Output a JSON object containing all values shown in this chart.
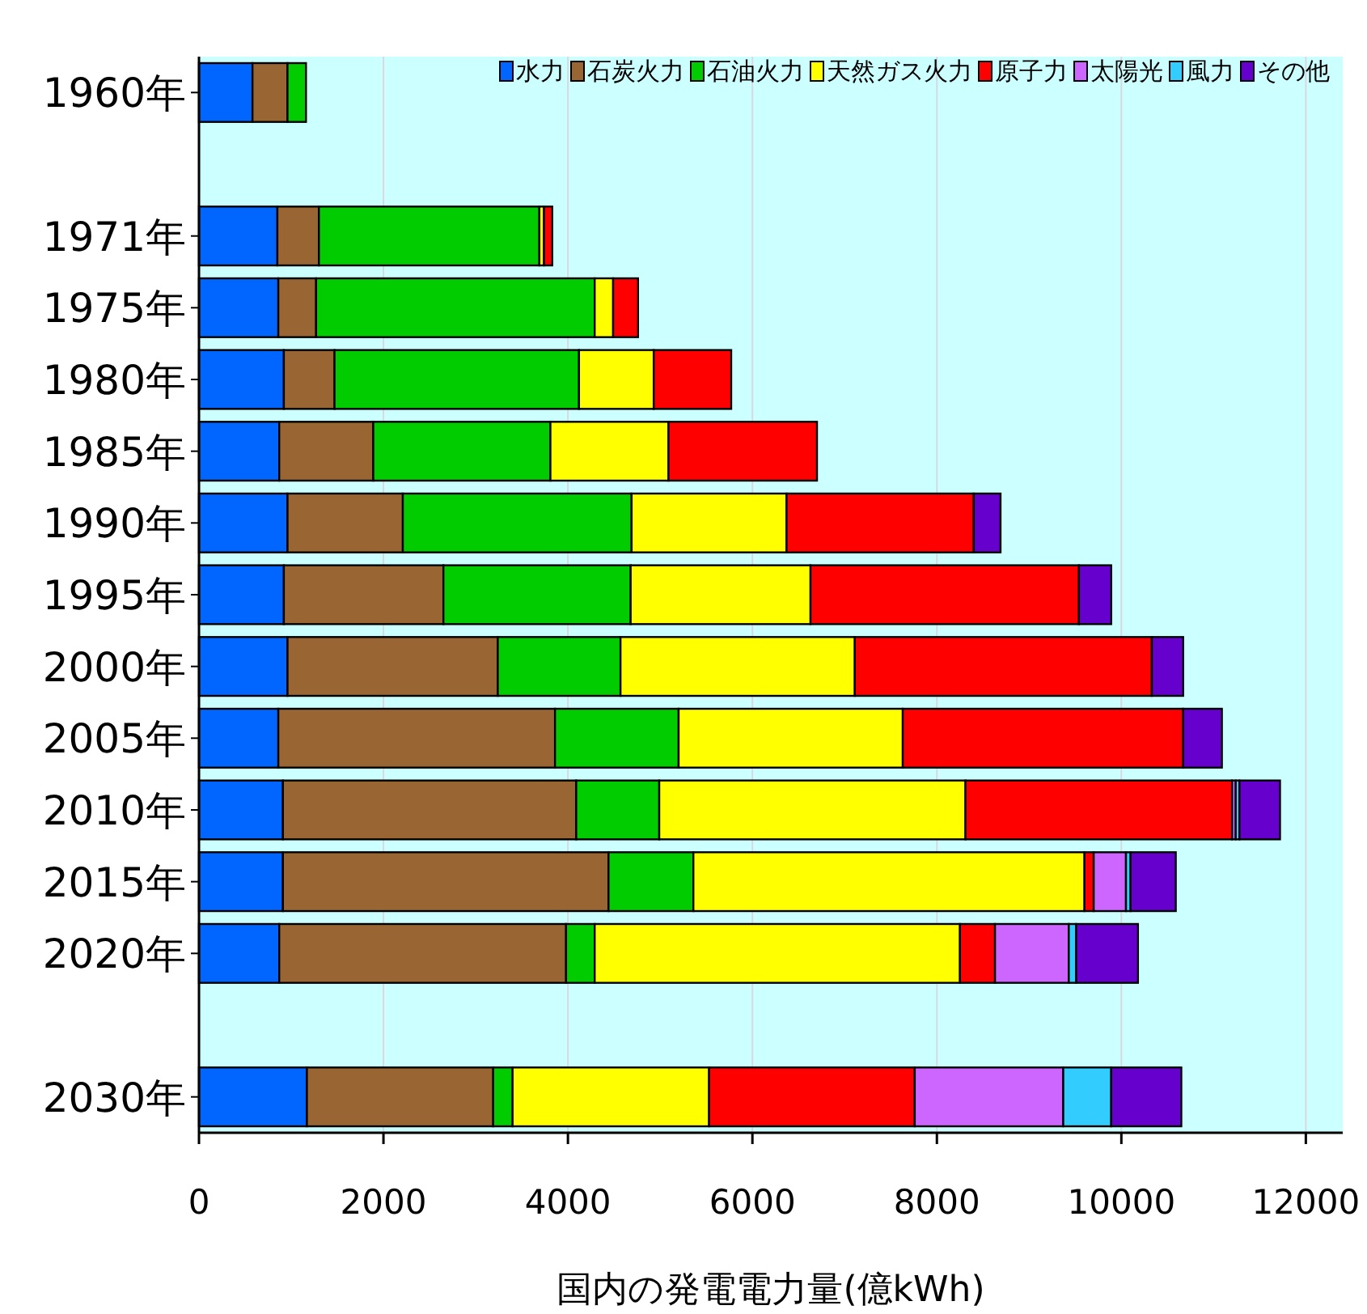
{
  "chart_data": {
    "type": "bar",
    "orientation": "horizontal",
    "stacked": true,
    "xlabel": "国内の発電電力量(億kWh)",
    "categories": [
      "1960年",
      null,
      "1971年",
      "1975年",
      "1980年",
      "1985年",
      "1990年",
      "1995年",
      "2000年",
      "2005年",
      "2010年",
      "2015年",
      "2020年",
      null,
      "2030年"
    ],
    "series": [
      {
        "name": "水力",
        "color": "#0066ff",
        "values": [
          580,
          null,
          850,
          860,
          920,
          870,
          960,
          920,
          960,
          860,
          910,
          910,
          870,
          null,
          1170
        ]
      },
      {
        "name": "石炭火力",
        "color": "#996633",
        "values": [
          380,
          null,
          450,
          410,
          550,
          1020,
          1250,
          1730,
          2280,
          3000,
          3180,
          3530,
          3110,
          null,
          2020
        ]
      },
      {
        "name": "石油火力",
        "color": "#00cc00",
        "values": [
          200,
          null,
          2390,
          3020,
          2650,
          1920,
          2480,
          2030,
          1330,
          1340,
          900,
          920,
          310,
          null,
          210
        ]
      },
      {
        "name": "天然ガス火力",
        "color": "#ffff00",
        "values": [
          null,
          null,
          50,
          200,
          810,
          1280,
          1680,
          1950,
          2540,
          2430,
          3320,
          4240,
          3960,
          null,
          2130
        ]
      },
      {
        "name": "原子力",
        "color": "#ff0000",
        "values": [
          null,
          null,
          90,
          270,
          840,
          1610,
          2030,
          2910,
          3220,
          3040,
          2890,
          100,
          380,
          null,
          2230
        ]
      },
      {
        "name": "太陽光",
        "color": "#cc66ff",
        "values": [
          null,
          null,
          null,
          null,
          null,
          null,
          null,
          null,
          null,
          null,
          40,
          350,
          800,
          null,
          1610
        ]
      },
      {
        "name": "風力",
        "color": "#33ccff",
        "values": [
          null,
          null,
          null,
          null,
          null,
          null,
          null,
          null,
          null,
          null,
          40,
          50,
          80,
          null,
          520
        ]
      },
      {
        "name": "その他",
        "color": "#6600cc",
        "values": [
          null,
          null,
          null,
          null,
          null,
          null,
          290,
          350,
          340,
          420,
          440,
          490,
          670,
          null,
          760
        ]
      }
    ],
    "xlim": [
      0,
      12400
    ],
    "xticks": [
      0,
      2000,
      4000,
      6000,
      8000,
      10000,
      12000
    ],
    "grid": "x",
    "legend": "top right"
  }
}
